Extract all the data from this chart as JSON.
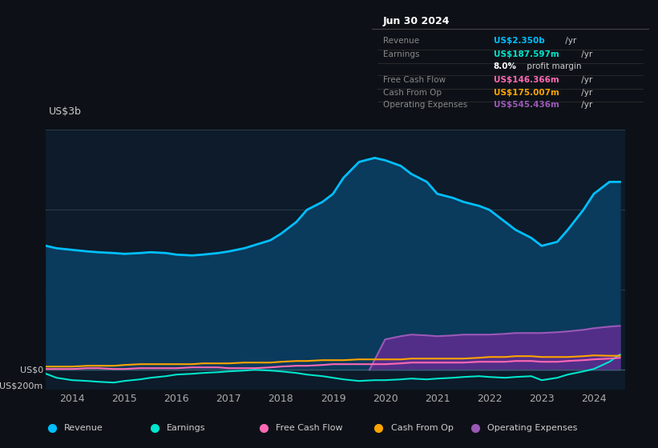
{
  "background_color": "#0d1117",
  "plot_bg_color": "#0d1b2a",
  "title_box": {
    "date": "Jun 30 2024",
    "rows": [
      {
        "label": "Revenue",
        "value": "US$2.350b",
        "unit": " /yr",
        "value_color": "#00bfff"
      },
      {
        "label": "Earnings",
        "value": "US$187.597m",
        "unit": " /yr",
        "value_color": "#00e5cc"
      },
      {
        "label": "",
        "value": "8.0%",
        "unit": " profit margin",
        "value_color": "#ffffff"
      },
      {
        "label": "Free Cash Flow",
        "value": "US$146.366m",
        "unit": " /yr",
        "value_color": "#ff69b4"
      },
      {
        "label": "Cash From Op",
        "value": "US$175.007m",
        "unit": " /yr",
        "value_color": "#ffa500"
      },
      {
        "label": "Operating Expenses",
        "value": "US$545.436m",
        "unit": " /yr",
        "value_color": "#9b59b6"
      }
    ]
  },
  "ylabel": "US$3b",
  "y0_label": "US$0",
  "yneg_label": "-US$200m",
  "x_ticks": [
    2014,
    2015,
    2016,
    2017,
    2018,
    2019,
    2020,
    2021,
    2022,
    2023,
    2024
  ],
  "revenue": {
    "x": [
      2013.5,
      2013.7,
      2014.0,
      2014.3,
      2014.5,
      2014.8,
      2015.0,
      2015.3,
      2015.5,
      2015.8,
      2016.0,
      2016.3,
      2016.5,
      2016.8,
      2017.0,
      2017.3,
      2017.5,
      2017.8,
      2018.0,
      2018.3,
      2018.5,
      2018.8,
      2019.0,
      2019.2,
      2019.5,
      2019.8,
      2020.0,
      2020.3,
      2020.5,
      2020.8,
      2021.0,
      2021.3,
      2021.5,
      2021.8,
      2022.0,
      2022.3,
      2022.5,
      2022.8,
      2023.0,
      2023.3,
      2023.5,
      2023.8,
      2024.0,
      2024.3,
      2024.5
    ],
    "y": [
      1.55,
      1.52,
      1.5,
      1.48,
      1.47,
      1.46,
      1.45,
      1.46,
      1.47,
      1.46,
      1.44,
      1.43,
      1.44,
      1.46,
      1.48,
      1.52,
      1.56,
      1.62,
      1.7,
      1.85,
      2.0,
      2.1,
      2.2,
      2.4,
      2.6,
      2.65,
      2.62,
      2.55,
      2.45,
      2.35,
      2.2,
      2.15,
      2.1,
      2.05,
      2.0,
      1.85,
      1.75,
      1.65,
      1.55,
      1.6,
      1.75,
      2.0,
      2.2,
      2.35,
      2.35
    ],
    "color": "#00bfff",
    "fill_color": "#0a3a5c",
    "lw": 2.0
  },
  "earnings": {
    "x": [
      2013.5,
      2013.7,
      2014.0,
      2014.3,
      2014.5,
      2014.8,
      2015.0,
      2015.3,
      2015.5,
      2015.8,
      2016.0,
      2016.3,
      2016.5,
      2016.8,
      2017.0,
      2017.3,
      2017.5,
      2017.8,
      2018.0,
      2018.3,
      2018.5,
      2018.8,
      2019.0,
      2019.2,
      2019.5,
      2019.8,
      2020.0,
      2020.3,
      2020.5,
      2020.8,
      2021.0,
      2021.3,
      2021.5,
      2021.8,
      2022.0,
      2022.3,
      2022.5,
      2022.8,
      2023.0,
      2023.3,
      2023.5,
      2023.8,
      2024.0,
      2024.3,
      2024.5
    ],
    "y": [
      -0.05,
      -0.1,
      -0.13,
      -0.14,
      -0.15,
      -0.16,
      -0.14,
      -0.12,
      -0.1,
      -0.08,
      -0.06,
      -0.05,
      -0.04,
      -0.03,
      -0.02,
      -0.01,
      0.0,
      -0.01,
      -0.02,
      -0.04,
      -0.06,
      -0.08,
      -0.1,
      -0.12,
      -0.14,
      -0.13,
      -0.13,
      -0.12,
      -0.11,
      -0.12,
      -0.11,
      -0.1,
      -0.09,
      -0.08,
      -0.09,
      -0.1,
      -0.09,
      -0.08,
      -0.13,
      -0.1,
      -0.06,
      -0.02,
      0.01,
      0.1,
      0.19
    ],
    "color": "#00e5cc",
    "lw": 1.5
  },
  "free_cash_flow": {
    "x": [
      2013.5,
      2013.7,
      2014.0,
      2014.3,
      2014.5,
      2014.8,
      2015.0,
      2015.3,
      2015.5,
      2015.8,
      2016.0,
      2016.3,
      2016.5,
      2016.8,
      2017.0,
      2017.3,
      2017.5,
      2017.8,
      2018.0,
      2018.3,
      2018.5,
      2018.8,
      2019.0,
      2019.2,
      2019.5,
      2019.8,
      2020.0,
      2020.3,
      2020.5,
      2020.8,
      2021.0,
      2021.3,
      2021.5,
      2021.8,
      2022.0,
      2022.3,
      2022.5,
      2022.8,
      2023.0,
      2023.3,
      2023.5,
      2023.8,
      2024.0,
      2024.3,
      2024.5
    ],
    "y": [
      0.01,
      0.01,
      0.01,
      0.02,
      0.02,
      0.01,
      0.01,
      0.02,
      0.02,
      0.02,
      0.02,
      0.03,
      0.03,
      0.03,
      0.02,
      0.02,
      0.02,
      0.03,
      0.04,
      0.05,
      0.05,
      0.06,
      0.07,
      0.07,
      0.07,
      0.07,
      0.07,
      0.08,
      0.09,
      0.09,
      0.09,
      0.09,
      0.09,
      0.1,
      0.1,
      0.1,
      0.11,
      0.11,
      0.1,
      0.1,
      0.11,
      0.12,
      0.13,
      0.14,
      0.15
    ],
    "color": "#ff69b4",
    "lw": 1.5
  },
  "cash_from_op": {
    "x": [
      2013.5,
      2013.7,
      2014.0,
      2014.3,
      2014.5,
      2014.8,
      2015.0,
      2015.3,
      2015.5,
      2015.8,
      2016.0,
      2016.3,
      2016.5,
      2016.8,
      2017.0,
      2017.3,
      2017.5,
      2017.8,
      2018.0,
      2018.3,
      2018.5,
      2018.8,
      2019.0,
      2019.2,
      2019.5,
      2019.8,
      2020.0,
      2020.3,
      2020.5,
      2020.8,
      2021.0,
      2021.3,
      2021.5,
      2021.8,
      2022.0,
      2022.3,
      2022.5,
      2022.8,
      2023.0,
      2023.3,
      2023.5,
      2023.8,
      2024.0,
      2024.3,
      2024.5
    ],
    "y": [
      0.04,
      0.04,
      0.04,
      0.05,
      0.05,
      0.05,
      0.06,
      0.07,
      0.07,
      0.07,
      0.07,
      0.07,
      0.08,
      0.08,
      0.08,
      0.09,
      0.09,
      0.09,
      0.1,
      0.11,
      0.11,
      0.12,
      0.12,
      0.12,
      0.13,
      0.13,
      0.13,
      0.13,
      0.14,
      0.14,
      0.14,
      0.14,
      0.14,
      0.15,
      0.16,
      0.16,
      0.17,
      0.17,
      0.16,
      0.16,
      0.16,
      0.17,
      0.18,
      0.175,
      0.175
    ],
    "color": "#ffa500",
    "lw": 1.5
  },
  "operating_expenses": {
    "x": [
      2019.7,
      2020.0,
      2020.3,
      2020.5,
      2020.8,
      2021.0,
      2021.3,
      2021.5,
      2021.8,
      2022.0,
      2022.3,
      2022.5,
      2022.8,
      2023.0,
      2023.3,
      2023.5,
      2023.8,
      2024.0,
      2024.3,
      2024.5
    ],
    "y": [
      0.0,
      0.38,
      0.42,
      0.44,
      0.43,
      0.42,
      0.43,
      0.44,
      0.44,
      0.44,
      0.45,
      0.46,
      0.46,
      0.46,
      0.47,
      0.48,
      0.5,
      0.52,
      0.54,
      0.55
    ],
    "color": "#9b59b6",
    "fill_color": "#5b2d8e",
    "lw": 1.5
  },
  "ylim": [
    -0.25,
    3.0
  ],
  "xlim": [
    2013.5,
    2024.6
  ],
  "gridline_y": [
    0.0,
    1.0,
    2.0,
    3.0
  ],
  "legend": [
    {
      "label": "Revenue",
      "color": "#00bfff"
    },
    {
      "label": "Earnings",
      "color": "#00e5cc"
    },
    {
      "label": "Free Cash Flow",
      "color": "#ff69b4"
    },
    {
      "label": "Cash From Op",
      "color": "#ffa500"
    },
    {
      "label": "Operating Expenses",
      "color": "#9b59b6"
    }
  ]
}
